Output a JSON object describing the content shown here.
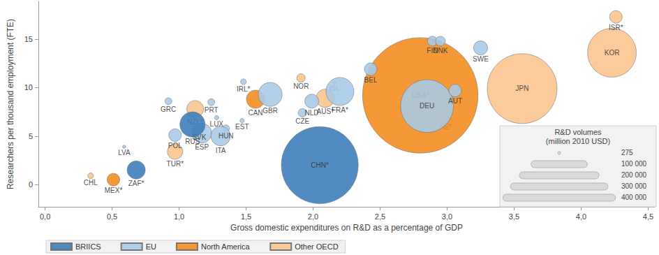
{
  "chart_data": {
    "type": "bubble",
    "x_label": "Gross domestic expenditures on R&D as a percentage of GDP",
    "y_label": "Researchers per thousand employment (FTE)",
    "xlim": [
      -0.05,
      4.55
    ],
    "ylim": [
      -2.3,
      18.9
    ],
    "xticks": [
      {
        "value": 0,
        "label": "0,0"
      },
      {
        "value": 0.5,
        "label": "0,5"
      },
      {
        "value": 1,
        "label": "1,0"
      },
      {
        "value": 1.5,
        "label": "1,5"
      },
      {
        "value": 2,
        "label": "2,0"
      },
      {
        "value": 2.5,
        "label": "2,5"
      },
      {
        "value": 3,
        "label": "3,0"
      },
      {
        "value": 3.5,
        "label": "3,5"
      },
      {
        "value": 4,
        "label": "4,0"
      },
      {
        "value": 4.5,
        "label": "4,5"
      }
    ],
    "yticks": [
      0,
      5,
      10,
      15
    ],
    "grid": false,
    "legend": "bottom",
    "series": [
      {
        "name": "BRIICS",
        "color": "#3a7bb9",
        "labels": [
          "ZAF*",
          "RUS",
          "CHN*"
        ],
        "x": [
          0.68,
          1.1,
          2.05
        ],
        "y": [
          1.5,
          6.2,
          2.0
        ],
        "size": [
          10400,
          20000,
          187000
        ]
      },
      {
        "name": "EU",
        "color": "#a7cae6",
        "labels": [
          "LVA",
          "POL",
          "GRC",
          "PRT",
          "SVK",
          "LUX",
          "ESP",
          "HUN",
          "ITA",
          "EST",
          "IRL*",
          "GBR",
          "CZE",
          "NLD",
          "FRA*",
          "BEL",
          "DEU",
          "AUT",
          "FIN",
          "DNK",
          "SWE"
        ],
        "x": [
          0.59,
          0.97,
          0.92,
          1.24,
          1.15,
          1.28,
          1.17,
          1.35,
          1.31,
          1.47,
          1.48,
          1.68,
          1.92,
          1.99,
          2.2,
          2.43,
          2.85,
          3.06,
          2.89,
          2.95,
          3.25
        ],
        "y": [
          3.9,
          5.1,
          8.6,
          8.5,
          5.6,
          6.9,
          5.3,
          5.8,
          5.0,
          6.6,
          10.6,
          9.3,
          7.4,
          8.6,
          9.6,
          11.9,
          8.1,
          9.7,
          14.8,
          14.8,
          14.1
        ],
        "size": [
          300,
          5000,
          1500,
          1500,
          1000,
          550,
          12000,
          1500,
          12000,
          550,
          1000,
          18000,
          2200,
          6200,
          24700,
          5000,
          88000,
          5000,
          3000,
          3000,
          6200
        ]
      },
      {
        "name": "North America",
        "color": "#f28a1d",
        "labels": [
          "MEX*",
          "CAN",
          "USA*"
        ],
        "x": [
          0.51,
          1.57,
          2.8
        ],
        "y": [
          0.5,
          8.8,
          9.2
        ],
        "size": [
          5000,
          10400,
          420000
        ]
      },
      {
        "name": "Other OECD",
        "color": "#fcc48d",
        "labels": [
          "CHL",
          "TUR*",
          "NZL*",
          "NOR",
          "AUS*",
          "ISL",
          "CHE*",
          "JPN",
          "KOR",
          "ISR*"
        ],
        "x": [
          0.34,
          0.97,
          1.12,
          1.91,
          2.09,
          2.16,
          2.97,
          3.56,
          4.23,
          4.26
        ],
        "y": [
          0.9,
          3.4,
          7.8,
          11.0,
          8.9,
          10.5,
          7.2,
          9.9,
          13.6,
          17.3
        ],
        "size": [
          1000,
          7500,
          8900,
          2200,
          10400,
          300,
          8000,
          154000,
          75000,
          5000
        ]
      }
    ],
    "size_legend": {
      "title": "R&D volumes",
      "subtitle": "(million 2010 USD)",
      "values": [
        275,
        {
          "value": 100000,
          "label": "100 000"
        },
        {
          "value": 200000,
          "label": "200 000"
        },
        {
          "value": 300000,
          "label": "300 000"
        },
        {
          "value": 400000,
          "label": "400 000"
        }
      ]
    }
  }
}
